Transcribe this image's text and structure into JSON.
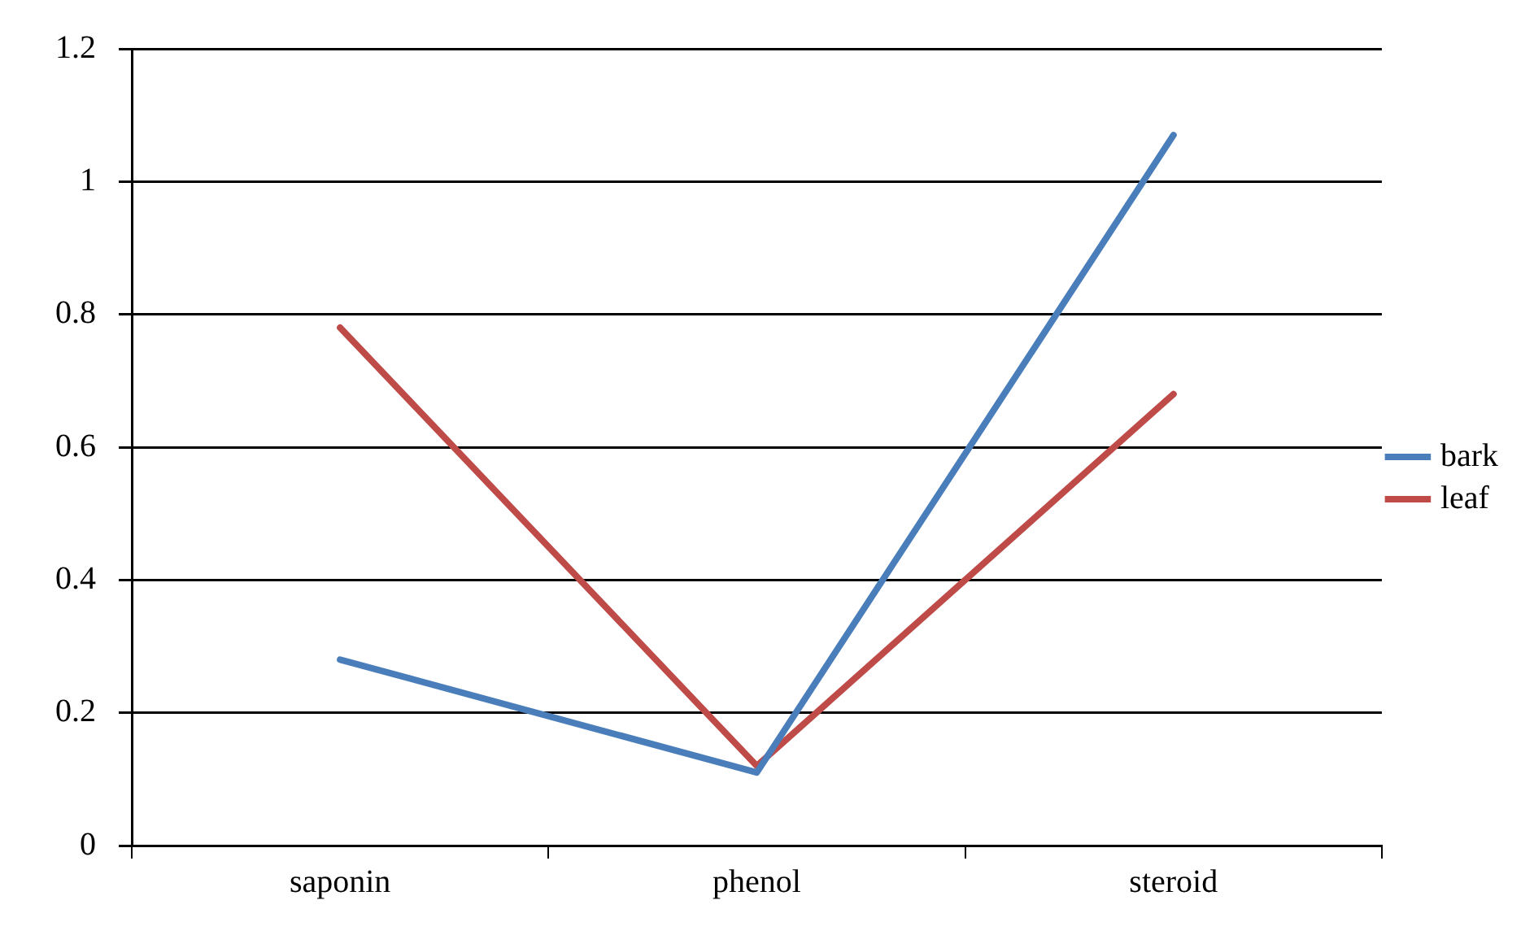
{
  "chart_data": {
    "type": "line",
    "categories": [
      "saponin",
      "phenol",
      "steroid"
    ],
    "series": [
      {
        "name": "bark",
        "color": "#4a7ebb",
        "values": [
          0.28,
          0.11,
          1.07
        ]
      },
      {
        "name": "leaf",
        "color": "#be4b48",
        "values": [
          0.78,
          0.12,
          0.68
        ]
      }
    ],
    "ylim": [
      0,
      1.2
    ],
    "yticks": [
      0,
      0.2,
      0.4,
      0.6,
      0.8,
      1,
      1.2
    ],
    "grid": "y",
    "legend": "right",
    "marker": "none",
    "line_style": "solid"
  }
}
